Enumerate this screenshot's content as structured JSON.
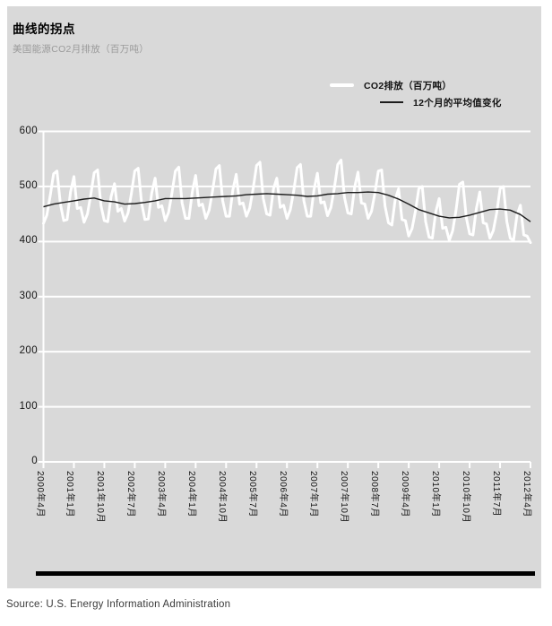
{
  "header": {
    "title": "曲线的拐点",
    "subtitle": "美国能源CO2月排放（百万吨）"
  },
  "legend": {
    "items": [
      {
        "label": "CO2排放（百万吨）",
        "swatch": "thick-white-line"
      },
      {
        "label": "12个月的平均值变化",
        "swatch": "thin-dark-line"
      }
    ]
  },
  "footer": {
    "source": "Source: U.S. Energy Information Administration"
  },
  "colors": {
    "panel_background": "#d9d9d9",
    "grid_and_axis": "#ffffff",
    "monthly_line": "#ffffff",
    "average_line": "#1c1c1c",
    "subtitle_text": "#9b9b9b",
    "divider_bar": "#000000"
  },
  "chart_data": {
    "type": "line",
    "title": "曲线的拐点",
    "subtitle": "美国能源CO2月排放（百万吨）",
    "ylabel": "",
    "xlabel": "",
    "ylim": [
      0,
      600
    ],
    "y_ticks": [
      600,
      500,
      400,
      300,
      200,
      100,
      0
    ],
    "grid": "horizontal-white",
    "legend_position": "top-right",
    "start_month": "2000-04",
    "end_month": "2012-04",
    "months_total": 145,
    "x_tick_month_step": 9,
    "x_tick_labels": [
      "2000年4月",
      "2001年1月",
      "2001年10月",
      "2002年7月",
      "2003年4月",
      "2004年1月",
      "2004年10月",
      "2005年7月",
      "2006年4月",
      "2007年1月",
      "2007年10月",
      "2008年7月",
      "2009年4月",
      "2010年1月",
      "2010年10月",
      "2011年7月",
      "2012年4月"
    ],
    "series": [
      {
        "name": "CO2排放（百万吨）",
        "style": "thick-white",
        "values": [
          433,
          448,
          483,
          523,
          528,
          468,
          438,
          440,
          490,
          518,
          460,
          462,
          435,
          450,
          485,
          525,
          530,
          465,
          438,
          436,
          482,
          505,
          455,
          460,
          437,
          452,
          487,
          528,
          533,
          470,
          440,
          441,
          488,
          515,
          462,
          465,
          438,
          453,
          488,
          528,
          535,
          470,
          442,
          442,
          490,
          520,
          465,
          468,
          442,
          457,
          492,
          532,
          538,
          474,
          446,
          446,
          494,
          522,
          468,
          470,
          446,
          461,
          496,
          538,
          544,
          478,
          450,
          448,
          496,
          515,
          462,
          466,
          442,
          458,
          492,
          534,
          540,
          474,
          446,
          446,
          494,
          524,
          470,
          472,
          447,
          462,
          497,
          540,
          548,
          480,
          452,
          450,
          498,
          526,
          470,
          468,
          442,
          455,
          488,
          528,
          530,
          464,
          434,
          430,
          476,
          496,
          440,
          438,
          410,
          424,
          456,
          496,
          500,
          436,
          408,
          406,
          454,
          478,
          424,
          426,
          402,
          420,
          458,
          504,
          508,
          444,
          414,
          412,
          460,
          490,
          434,
          432,
          406,
          420,
          452,
          496,
          500,
          436,
          406,
          402,
          448,
          466,
          412,
          410,
          398
        ]
      },
      {
        "name": "12个月的平均值变化",
        "style": "thin-dark",
        "points": [
          [
            0,
            463
          ],
          [
            3,
            468
          ],
          [
            6,
            471
          ],
          [
            9,
            474
          ],
          [
            12,
            477
          ],
          [
            15,
            479
          ],
          [
            18,
            474
          ],
          [
            21,
            472
          ],
          [
            24,
            468
          ],
          [
            27,
            469
          ],
          [
            30,
            471
          ],
          [
            33,
            474
          ],
          [
            36,
            478
          ],
          [
            39,
            478
          ],
          [
            42,
            478
          ],
          [
            45,
            479
          ],
          [
            48,
            480
          ],
          [
            51,
            481
          ],
          [
            54,
            482
          ],
          [
            57,
            483
          ],
          [
            60,
            485
          ],
          [
            63,
            486
          ],
          [
            66,
            487
          ],
          [
            69,
            486
          ],
          [
            72,
            485
          ],
          [
            75,
            484
          ],
          [
            78,
            482
          ],
          [
            81,
            483
          ],
          [
            84,
            486
          ],
          [
            87,
            487
          ],
          [
            90,
            489
          ],
          [
            93,
            489
          ],
          [
            96,
            490
          ],
          [
            99,
            489
          ],
          [
            102,
            484
          ],
          [
            105,
            477
          ],
          [
            108,
            468
          ],
          [
            111,
            458
          ],
          [
            114,
            452
          ],
          [
            117,
            446
          ],
          [
            120,
            443
          ],
          [
            123,
            444
          ],
          [
            126,
            448
          ],
          [
            129,
            453
          ],
          [
            132,
            458
          ],
          [
            135,
            459
          ],
          [
            138,
            457
          ],
          [
            141,
            449
          ],
          [
            144,
            436
          ]
        ]
      }
    ]
  }
}
